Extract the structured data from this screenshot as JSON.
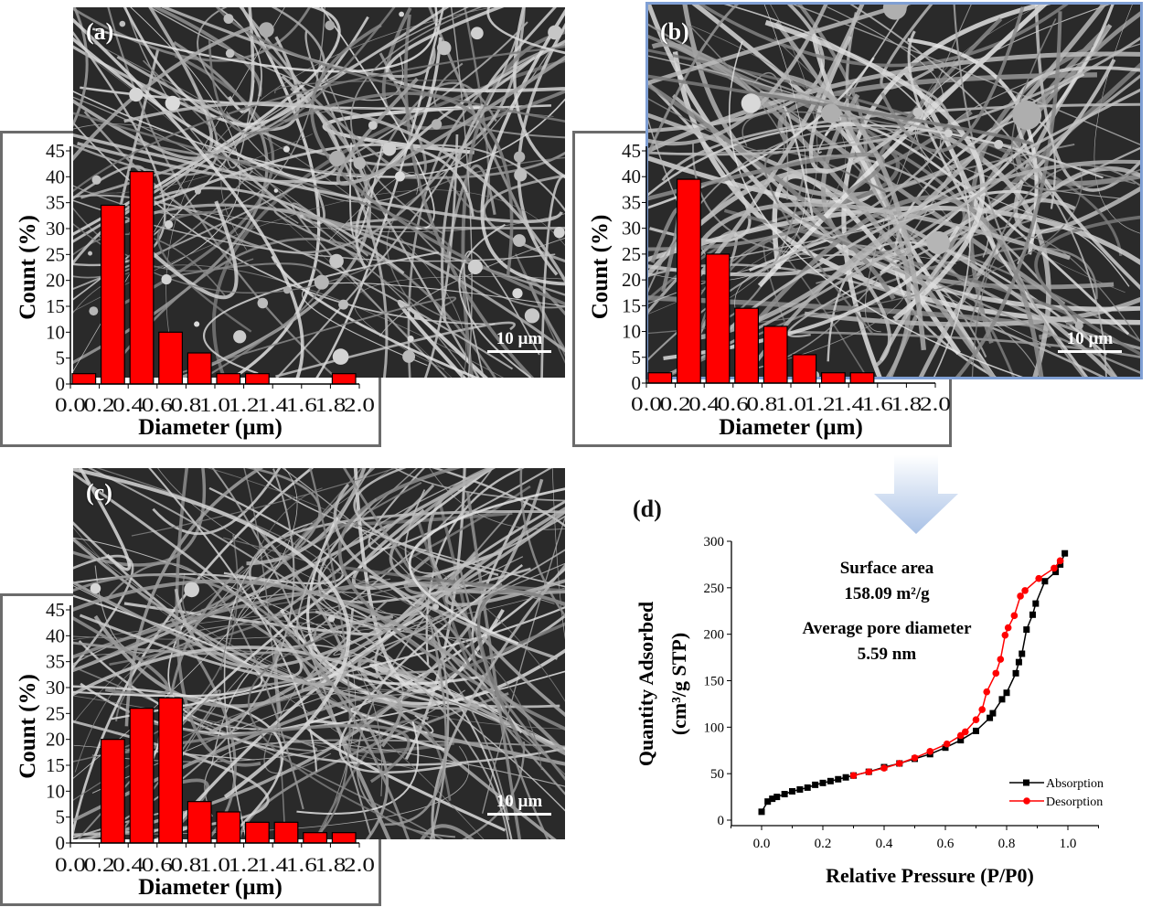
{
  "panels": {
    "a": {
      "label": "(a)",
      "scale_bar": "10 µm"
    },
    "b": {
      "label": "(b)",
      "scale_bar": "10 µm"
    },
    "c": {
      "label": "(c)",
      "scale_bar": "10 µm"
    },
    "d": {
      "label": "(d)"
    }
  },
  "colors": {
    "bar": "#ff0000",
    "absorption": "#000000",
    "desorption": "#ff0000",
    "highlight_border": "#7f9fd4",
    "arrow": "#a9c1e6"
  },
  "chart_data": [
    {
      "id": "a",
      "type": "bar",
      "xlabel": "Diameter (µm)",
      "ylabel": "Count (%)",
      "xticks": [
        "0.0",
        "0.2",
        "0.4",
        "0.6",
        "0.8",
        "1.0",
        "1.2",
        "1.4",
        "1.6",
        "1.8",
        "2.0"
      ],
      "yticks": [
        "0",
        "5",
        "10",
        "15",
        "20",
        "25",
        "30",
        "35",
        "40",
        "45"
      ],
      "xlim": [
        0,
        2.0
      ],
      "ylim": [
        0,
        45
      ],
      "bin_edges": [
        0,
        0.2,
        0.4,
        0.6,
        0.8,
        1.0,
        1.2,
        1.4,
        1.6,
        1.8,
        2.0
      ],
      "values": [
        2,
        34.5,
        41,
        10,
        6,
        2,
        2,
        0,
        0,
        2
      ]
    },
    {
      "id": "b",
      "type": "bar",
      "xlabel": "Diameter (µm)",
      "ylabel": "Count (%)",
      "xticks": [
        "0.0",
        "0.2",
        "0.4",
        "0.6",
        "0.8",
        "1.0",
        "1.2",
        "1.4",
        "1.6",
        "1.8",
        "2.0"
      ],
      "yticks": [
        "0",
        "5",
        "10",
        "15",
        "20",
        "25",
        "30",
        "35",
        "40",
        "45"
      ],
      "xlim": [
        0,
        2.0
      ],
      "ylim": [
        0,
        45
      ],
      "bin_edges": [
        0,
        0.2,
        0.4,
        0.6,
        0.8,
        1.0,
        1.2,
        1.4,
        1.6,
        1.8,
        2.0
      ],
      "values": [
        2,
        39.5,
        25,
        14.5,
        11,
        5.5,
        2,
        2,
        0,
        0
      ]
    },
    {
      "id": "c",
      "type": "bar",
      "xlabel": "Diameter (µm)",
      "ylabel": "Count (%)",
      "xticks": [
        "0.0",
        "0.2",
        "0.4",
        "0.6",
        "0.8",
        "1.0",
        "1.2",
        "1.4",
        "1.6",
        "1.8",
        "2.0"
      ],
      "yticks": [
        "0",
        "5",
        "10",
        "15",
        "20",
        "25",
        "30",
        "35",
        "40",
        "45"
      ],
      "xlim": [
        0,
        2.0
      ],
      "ylim": [
        0,
        45
      ],
      "bin_edges": [
        0,
        0.2,
        0.4,
        0.6,
        0.8,
        1.0,
        1.2,
        1.4,
        1.6,
        1.8,
        2.0
      ],
      "values": [
        0,
        20,
        26,
        28,
        8,
        6,
        4,
        4,
        2,
        2
      ]
    },
    {
      "id": "d",
      "type": "line",
      "xlabel": "Relative Pressure (P/P0)",
      "ylabel_line1": "Quantity Adsorbed",
      "ylabel_line2": "(cm³/g STP)",
      "xticks": [
        "0.0",
        "0.2",
        "0.4",
        "0.6",
        "0.8",
        "1.0"
      ],
      "yticks": [
        "0",
        "50",
        "100",
        "150",
        "200",
        "250",
        "300"
      ],
      "xlim": [
        -0.1,
        1.1
      ],
      "ylim": [
        0,
        300
      ],
      "legend": "bottom-right",
      "annotations": [
        "Surface area",
        "158.09 m²/g",
        "Average pore diameter",
        "5.59 nm"
      ],
      "series": [
        {
          "name": "Absorption",
          "marker": "square",
          "x": [
            0.0,
            0.02,
            0.035,
            0.05,
            0.075,
            0.1,
            0.125,
            0.15,
            0.175,
            0.2,
            0.225,
            0.25,
            0.275,
            0.3,
            0.35,
            0.4,
            0.45,
            0.5,
            0.55,
            0.6,
            0.65,
            0.7,
            0.745,
            0.755,
            0.785,
            0.8,
            0.83,
            0.84,
            0.85,
            0.865,
            0.885,
            0.895,
            0.925,
            0.96,
            0.975,
            0.99
          ],
          "y": [
            9,
            20,
            23,
            25,
            28,
            31,
            33,
            35,
            38,
            40,
            42,
            44,
            46,
            48,
            52,
            57,
            61,
            66,
            71,
            78,
            86,
            96,
            110,
            115,
            130,
            137,
            158,
            170,
            179,
            205,
            221,
            233,
            257,
            267,
            275,
            287
          ]
        },
        {
          "name": "Desorption",
          "marker": "circle",
          "x": [
            0.3,
            0.35,
            0.4,
            0.45,
            0.5,
            0.55,
            0.605,
            0.65,
            0.665,
            0.7,
            0.72,
            0.735,
            0.765,
            0.78,
            0.795,
            0.805,
            0.825,
            0.845,
            0.86,
            0.905,
            0.955,
            0.975
          ],
          "y": [
            48,
            52,
            56,
            61,
            67,
            74,
            82,
            91,
            95,
            108,
            119,
            138,
            158,
            173,
            199,
            207,
            220,
            241,
            247,
            260,
            271,
            279
          ]
        }
      ]
    }
  ]
}
